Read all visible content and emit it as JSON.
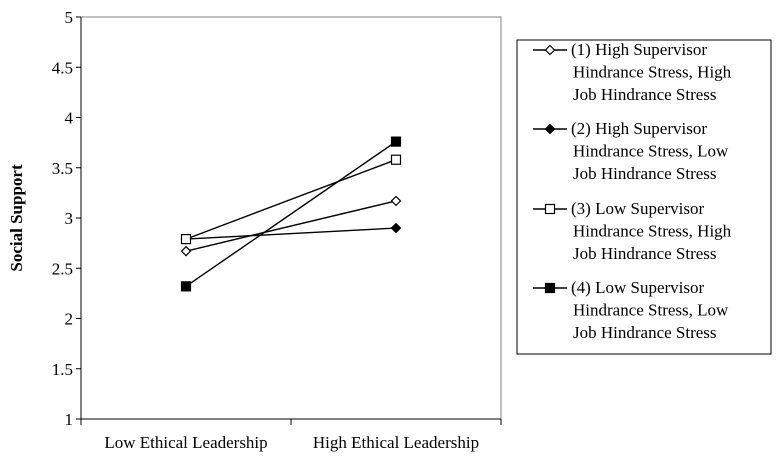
{
  "chart_data": {
    "type": "line",
    "title": "",
    "xlabel": "",
    "ylabel": "Social Support",
    "categories": [
      "Low Ethical Leadership",
      "High Ethical Leadership"
    ],
    "ylim": [
      1,
      5
    ],
    "yticks": [
      "1",
      "1.5",
      "2",
      "2.5",
      "3",
      "3.5",
      "4",
      "4.5",
      "5"
    ],
    "grid": false,
    "legend_position": "right",
    "series": [
      {
        "name": "(1) High Supervisor Hindrance Stress, High Job Hindrance Stress",
        "legend_lines": [
          "(1) High Supervisor",
          "Hindrance Stress, High",
          "Job Hindrance Stress"
        ],
        "marker": "diamond-open",
        "values": [
          2.67,
          3.17
        ]
      },
      {
        "name": "(2) High Supervisor Hindrance Stress, Low Job Hindrance Stress",
        "legend_lines": [
          "(2) High Supervisor",
          "Hindrance Stress, Low",
          "Job Hindrance Stress"
        ],
        "marker": "diamond-filled",
        "values": [
          2.79,
          2.9
        ]
      },
      {
        "name": "(3) Low Supervisor Hindrance Stress, High Job Hindrance Stress",
        "legend_lines": [
          "(3) Low Supervisor",
          "Hindrance Stress, High",
          "Job Hindrance Stress"
        ],
        "marker": "square-open",
        "values": [
          2.79,
          3.58
        ]
      },
      {
        "name": "(4) Low Supervisor Hindrance Stress, Low Job Hindrance Stress",
        "legend_lines": [
          "(4) Low Supervisor",
          "Hindrance Stress, Low",
          "Job Hindrance Stress"
        ],
        "marker": "square-filled",
        "values": [
          2.32,
          3.76
        ]
      }
    ]
  }
}
